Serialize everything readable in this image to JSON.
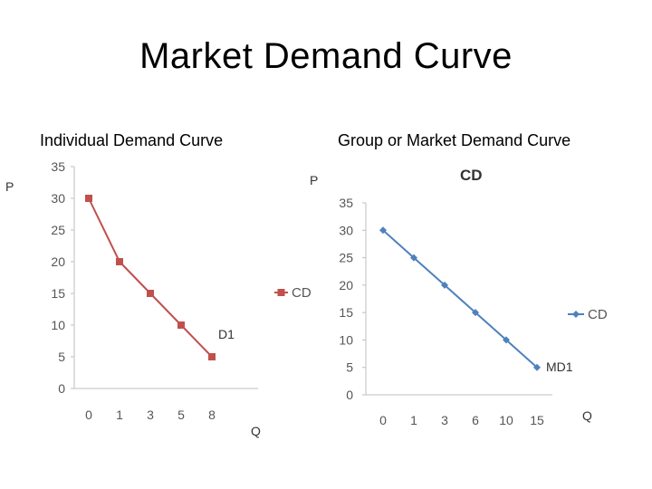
{
  "slide": {
    "title": "Market Demand Curve",
    "p_left": "P",
    "p_right": "P",
    "q_left": "Q",
    "q_right": "Q",
    "d1": "D1",
    "md1": "MD1"
  },
  "colors": {
    "individual_series": "#c0504d",
    "market_series": "#4f81bd",
    "axis": "#bfbfbf",
    "tick_text": "#595959"
  },
  "chart_data": [
    {
      "type": "line",
      "title": "Individual Demand Curve",
      "categories": [
        "0",
        "1",
        "3",
        "5",
        "8"
      ],
      "series": [
        {
          "name": "CD",
          "values": [
            30,
            20,
            15,
            10,
            5
          ]
        }
      ],
      "ylim": [
        0,
        35
      ],
      "yticks": [
        0,
        5,
        10,
        15,
        20,
        25,
        30,
        35
      ],
      "grid": false,
      "legend": "right"
    },
    {
      "type": "line",
      "title": "Group or Market Demand Curve",
      "inner_title": "CD",
      "categories": [
        "0",
        "1",
        "3",
        "6",
        "10",
        "15"
      ],
      "series": [
        {
          "name": "CD",
          "values": [
            30,
            25,
            20,
            15,
            10,
            5
          ]
        }
      ],
      "ylim": [
        0,
        35
      ],
      "yticks": [
        0,
        5,
        10,
        15,
        20,
        25,
        30,
        35
      ],
      "grid": false,
      "legend": "right"
    }
  ]
}
